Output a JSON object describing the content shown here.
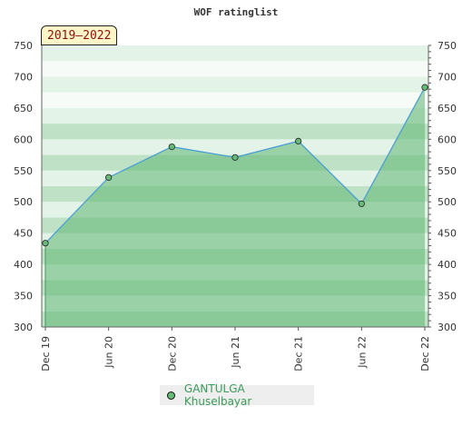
{
  "chart_data": {
    "type": "area",
    "title": "WOF ratinglist",
    "period_label": "2019–2022",
    "x": [
      "Dec 19",
      "Jun 20",
      "Dec 20",
      "Jun 21",
      "Dec 21",
      "Jun 22",
      "Dec 22"
    ],
    "series": [
      {
        "name": "GANTULGA Khuselbayar",
        "values": [
          434,
          539,
          588,
          571,
          597,
          497,
          683
        ]
      }
    ],
    "ylim": [
      300,
      750
    ],
    "yticks": [
      300,
      350,
      400,
      450,
      500,
      550,
      600,
      650,
      700,
      750
    ],
    "legend_position": "bottom-center",
    "grid": true,
    "colors": {
      "line": "#4a9fd4",
      "fill": "#5fb573",
      "marker": "#66bb77",
      "band_dark": "#bfe2c6",
      "band_light": "#e4f3e7",
      "band_white": "#f6fbf7"
    }
  }
}
